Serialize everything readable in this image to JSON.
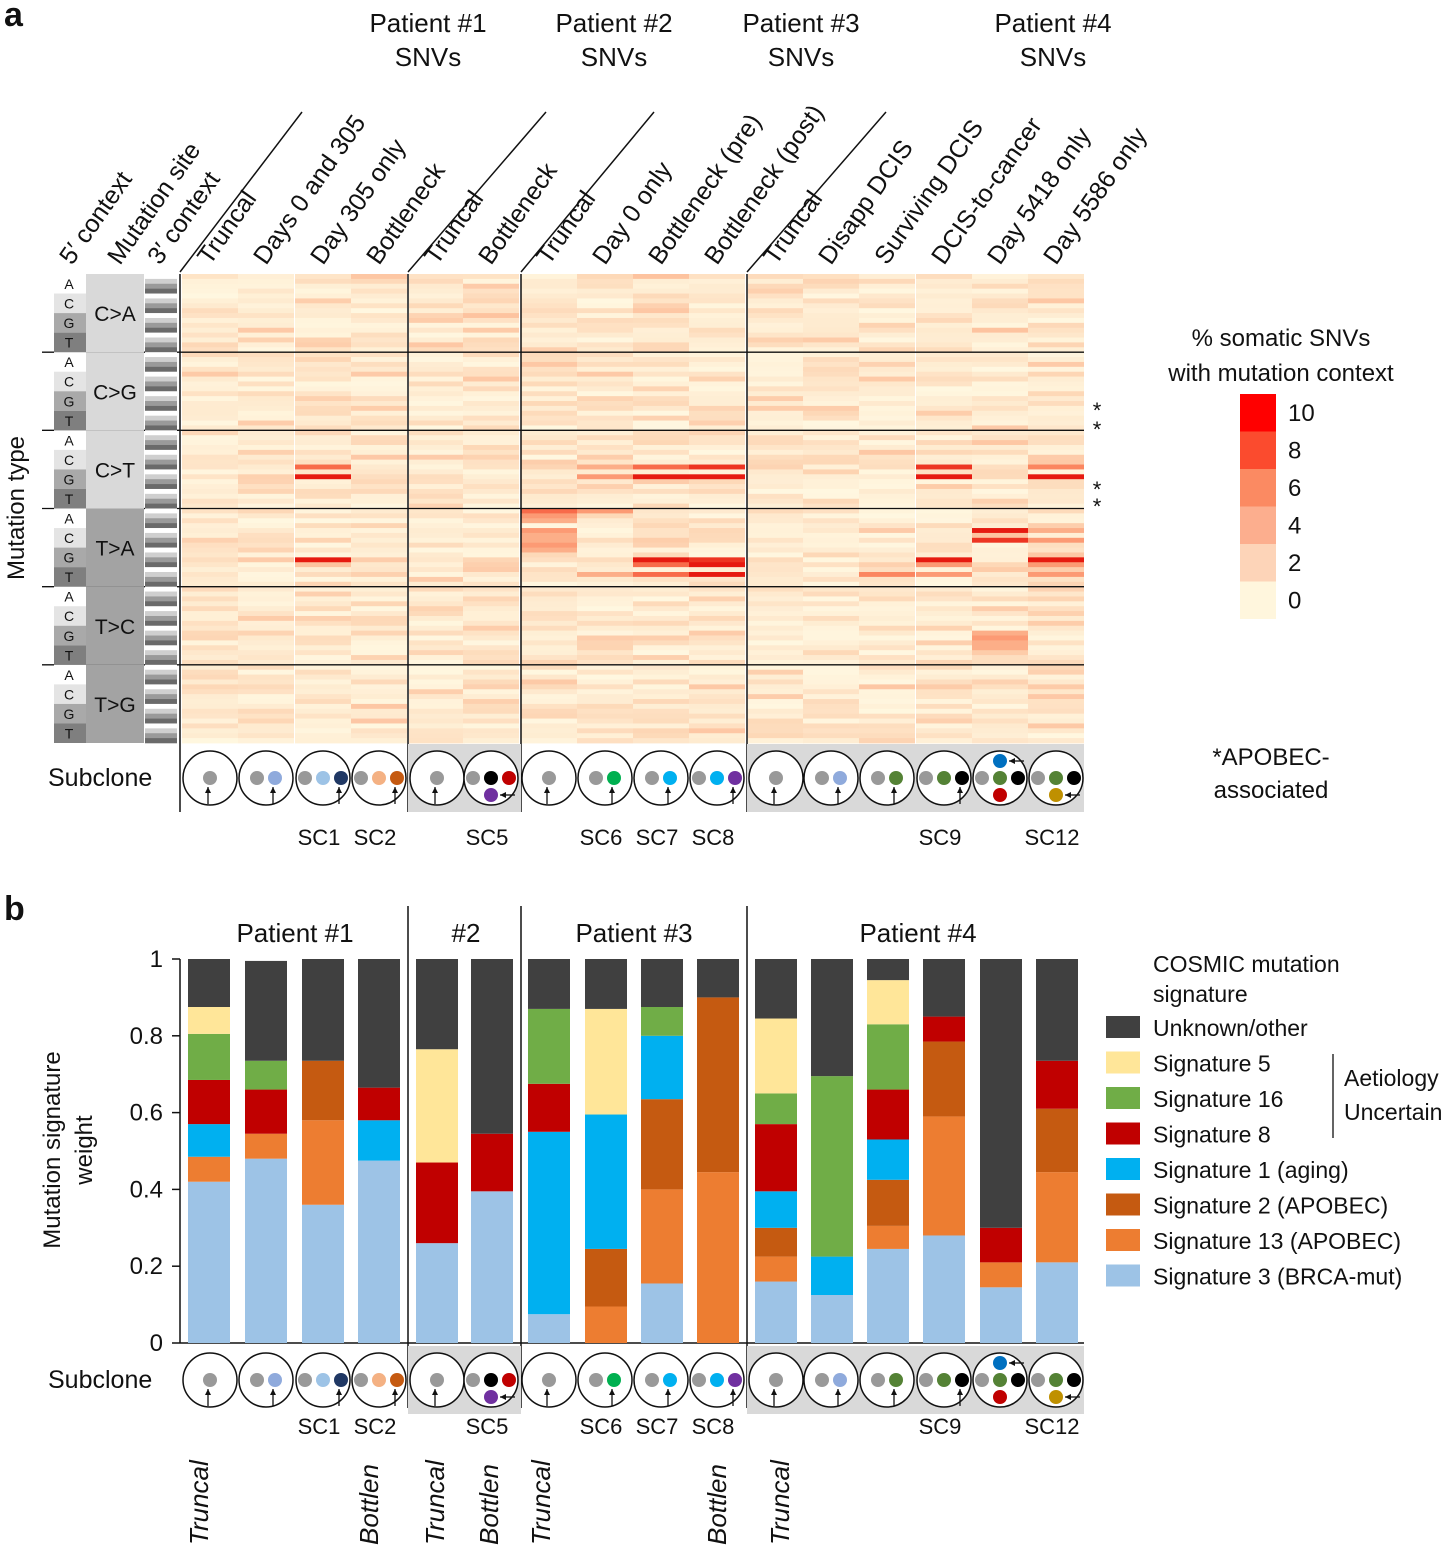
{
  "panels": {
    "a": "a",
    "b": "b"
  },
  "colors": {
    "heat_scale": [
      "#fff7e0",
      "#fdd7b6",
      "#fcae88",
      "#fb8660",
      "#f45033",
      "#e61a10"
    ],
    "legend_boxes": [
      "#ff0000",
      "#fb4b2e",
      "#fb8a62",
      "#fcae8e",
      "#fdd4b8",
      "#fff6dd"
    ],
    "subclone_panel": "#d9d9d9",
    "grey_group": "#a3a3a3",
    "light_group": "#d9d9d9",
    "circle_fill": "#ffffff"
  },
  "heatmap": {
    "patient_headers": [
      {
        "line1": "Patient #1",
        "line2": "SNVs"
      },
      {
        "line1": "Patient #2",
        "line2": "SNVs"
      },
      {
        "line1": "Patient #3",
        "line2": "SNVs"
      },
      {
        "line1": "Patient #4",
        "line2": "SNVs"
      }
    ],
    "left_headers": [
      "5′ context",
      "Mutation site",
      "3′ context"
    ],
    "columns": [
      "Truncal",
      "Days 0 and 305",
      "Day 305 only",
      "Bottleneck",
      "Truncal",
      "Bottleneck",
      "Truncal",
      "Day 0 only",
      "Bottleneck (pre)",
      "Bottleneck (post)",
      "Truncal",
      "Disapp DCIS",
      "Surviving DCIS",
      "DCIS-to-cancer",
      "Day 5418 only",
      "Day 5586 only"
    ],
    "mutation_types": [
      "C>A",
      "C>G",
      "C>T",
      "T>A",
      "T>C",
      "T>G"
    ],
    "bases": [
      "A",
      "C",
      "G",
      "T"
    ],
    "y_axis_label": "Mutation type",
    "asterisk": "*",
    "legend_title": [
      "% somatic SNVs",
      "with mutation context"
    ],
    "legend_values": [
      "10",
      "8",
      "6",
      "4",
      "2",
      "0"
    ],
    "apobec_note": [
      "*APOBEC-",
      "associated"
    ],
    "subclone_label": "Subclone",
    "subclone_names": [
      "",
      "",
      "SC1",
      "SC2",
      "",
      "SC5",
      "",
      "SC6",
      "SC7",
      "SC8",
      "",
      "",
      "",
      "SC9",
      "",
      "SC12"
    ],
    "hot_cells": [
      {
        "row": 39,
        "col": 2,
        "value": 7
      },
      {
        "row": 41,
        "col": 2,
        "value": 10
      },
      {
        "row": 39,
        "col": 8,
        "value": 7
      },
      {
        "row": 41,
        "col": 8,
        "value": 10
      },
      {
        "row": 39,
        "col": 9,
        "value": 9
      },
      {
        "row": 41,
        "col": 9,
        "value": 10
      },
      {
        "row": 39,
        "col": 13,
        "value": 9
      },
      {
        "row": 41,
        "col": 13,
        "value": 10
      },
      {
        "row": 39,
        "col": 15,
        "value": 6
      },
      {
        "row": 41,
        "col": 15,
        "value": 10
      },
      {
        "row": 39,
        "col": 7,
        "value": 4
      },
      {
        "row": 41,
        "col": 7,
        "value": 5
      },
      {
        "row": 58,
        "col": 2,
        "value": 10
      },
      {
        "row": 59,
        "col": 2,
        "value": 3
      },
      {
        "row": 58,
        "col": 8,
        "value": 10
      },
      {
        "row": 59,
        "col": 8,
        "value": 7
      },
      {
        "row": 58,
        "col": 9,
        "value": 9
      },
      {
        "row": 59,
        "col": 9,
        "value": 10
      },
      {
        "row": 58,
        "col": 13,
        "value": 10
      },
      {
        "row": 59,
        "col": 13,
        "value": 5
      },
      {
        "row": 58,
        "col": 15,
        "value": 10
      },
      {
        "row": 59,
        "col": 15,
        "value": 5
      },
      {
        "row": 61,
        "col": 9,
        "value": 10
      },
      {
        "row": 61,
        "col": 8,
        "value": 7
      },
      {
        "row": 61,
        "col": 7,
        "value": 4
      },
      {
        "row": 61,
        "col": 12,
        "value": 6
      },
      {
        "row": 61,
        "col": 13,
        "value": 5
      },
      {
        "row": 61,
        "col": 15,
        "value": 5
      },
      {
        "row": 48,
        "col": 6,
        "value": 7
      },
      {
        "row": 48,
        "col": 7,
        "value": 5
      },
      {
        "row": 49,
        "col": 6,
        "value": 5
      },
      {
        "row": 50,
        "col": 6,
        "value": 4
      },
      {
        "row": 52,
        "col": 6,
        "value": 5
      },
      {
        "row": 53,
        "col": 6,
        "value": 4
      },
      {
        "row": 54,
        "col": 6,
        "value": 4
      },
      {
        "row": 55,
        "col": 6,
        "value": 5
      },
      {
        "row": 56,
        "col": 6,
        "value": 4
      },
      {
        "row": 52,
        "col": 14,
        "value": 10
      },
      {
        "row": 53,
        "col": 14,
        "value": 3
      },
      {
        "row": 54,
        "col": 14,
        "value": 9
      },
      {
        "row": 52,
        "col": 15,
        "value": 4
      },
      {
        "row": 54,
        "col": 15,
        "value": 5
      },
      {
        "row": 73,
        "col": 14,
        "value": 4
      },
      {
        "row": 74,
        "col": 14,
        "value": 5
      },
      {
        "row": 75,
        "col": 14,
        "value": 4
      },
      {
        "row": 76,
        "col": 14,
        "value": 4
      },
      {
        "row": 100,
        "col": 11,
        "value": 4
      },
      {
        "row": 101,
        "col": 11,
        "value": 3
      },
      {
        "row": 103,
        "col": 11,
        "value": 3
      },
      {
        "row": 105,
        "col": 10,
        "value": 3
      },
      {
        "row": 106,
        "col": 11,
        "value": 3
      },
      {
        "row": 127,
        "col": 10,
        "value": 4
      },
      {
        "row": 138,
        "col": 1,
        "value": 3
      },
      {
        "row": 140,
        "col": 1,
        "value": 3
      },
      {
        "row": 140,
        "col": 2,
        "value": 3
      },
      {
        "row": 8,
        "col": 5,
        "value": 3
      },
      {
        "row": 11,
        "col": 14,
        "value": 3
      },
      {
        "row": 0,
        "col": 8,
        "value": 3
      }
    ]
  },
  "signature_chart": {
    "patient_headers": [
      "Patient #1",
      "#2",
      "Patient #3",
      "Patient #4"
    ],
    "subclone_label": "Subclone",
    "subclone_names": [
      "",
      "",
      "SC1",
      "SC2",
      "",
      "SC5",
      "",
      "SC6",
      "SC7",
      "SC8",
      "",
      "",
      "",
      "SC9",
      "",
      "SC12"
    ],
    "bottom_labels": [
      "Truncal",
      "Bottlen",
      "Truncal",
      "Bottlen",
      "Truncal",
      "Bottlen",
      "Truncal"
    ],
    "legend_title": [
      "COSMIC mutation",
      "signature"
    ],
    "aetiology_label": [
      "Aetiology",
      "Uncertain"
    ]
  },
  "chart_data": {
    "type": "bar",
    "stacked": true,
    "ylabel": "Mutation signature weight",
    "ylim": [
      0,
      1
    ],
    "yticks": [
      "0",
      "0.2",
      "0.4",
      "0.6",
      "0.8",
      "1"
    ],
    "bars_per_group": [
      4,
      2,
      4,
      6
    ],
    "series": [
      {
        "name": "Signature 3 (BRCA-mut)",
        "color": "#9dc3e6",
        "values": [
          0.42,
          0.48,
          0.36,
          0.475,
          0.26,
          0.395,
          0.075,
          0.0,
          0.155,
          0.0,
          0.16,
          0.125,
          0.245,
          0.28,
          0.145,
          0.21
        ]
      },
      {
        "name": "Signature 13 (APOBEC)",
        "color": "#ed7d31",
        "values": [
          0.065,
          0.065,
          0.22,
          0.0,
          0.0,
          0.0,
          0.0,
          0.095,
          0.245,
          0.445,
          0.065,
          0.0,
          0.06,
          0.31,
          0.065,
          0.235
        ]
      },
      {
        "name": "Signature 2 (APOBEC)",
        "color": "#c55a11",
        "values": [
          0.0,
          0.0,
          0.155,
          0.0,
          0.0,
          0.0,
          0.0,
          0.15,
          0.235,
          0.455,
          0.075,
          0.0,
          0.12,
          0.195,
          0.0,
          0.165
        ]
      },
      {
        "name": "Signature 1 (aging)",
        "color": "#00b0f0",
        "values": [
          0.085,
          0.0,
          0.0,
          0.105,
          0.0,
          0.0,
          0.475,
          0.35,
          0.165,
          0.0,
          0.095,
          0.1,
          0.105,
          0.0,
          0.0,
          0.0
        ]
      },
      {
        "name": "Signature 8",
        "color": "#c00000",
        "values": [
          0.115,
          0.115,
          0.0,
          0.085,
          0.21,
          0.15,
          0.125,
          0.0,
          0.0,
          0.0,
          0.175,
          0.0,
          0.13,
          0.065,
          0.09,
          0.125
        ]
      },
      {
        "name": "Signature 16",
        "color": "#70ad47",
        "values": [
          0.12,
          0.075,
          0.0,
          0.0,
          0.0,
          0.0,
          0.195,
          0.0,
          0.075,
          0.0,
          0.08,
          0.47,
          0.17,
          0.0,
          0.0,
          0.0
        ]
      },
      {
        "name": "Signature 5",
        "color": "#ffe699",
        "values": [
          0.07,
          0.0,
          0.0,
          0.0,
          0.295,
          0.0,
          0.0,
          0.275,
          0.0,
          0.0,
          0.195,
          0.0,
          0.115,
          0.0,
          0.0,
          0.0
        ]
      },
      {
        "name": "Unknown/other",
        "color": "#404040",
        "values": [
          0.125,
          0.26,
          0.265,
          0.335,
          0.235,
          0.455,
          0.13,
          0.13,
          0.125,
          0.1,
          0.155,
          0.305,
          0.055,
          0.15,
          0.7,
          0.265
        ]
      }
    ],
    "legend_order": [
      "Unknown/other",
      "Signature 5",
      "Signature 16",
      "Signature 8",
      "Signature 1 (aging)",
      "Signature 2 (APOBEC)",
      "Signature 13 (APOBEC)",
      "Signature 3 (BRCA-mut)"
    ]
  },
  "subclone_glyphs": [
    {
      "dots": [
        "#999999"
      ]
    },
    {
      "dots": [
        "#999999",
        "#8faadc"
      ]
    },
    {
      "dots": [
        "#999999",
        "#9dc3e6",
        "#203864"
      ]
    },
    {
      "dots": [
        "#999999",
        "#f4b183",
        "#c55a11"
      ]
    },
    {
      "dots": [
        "#999999"
      ]
    },
    {
      "dots": [
        "#999999",
        "#000000",
        "#c00000"
      ],
      "extra_below": "#7030a0"
    },
    {
      "dots": [
        "#999999"
      ]
    },
    {
      "dots": [
        "#999999",
        "#00b050"
      ]
    },
    {
      "dots": [
        "#999999",
        "#00b0f0"
      ]
    },
    {
      "dots": [
        "#999999",
        "#00b0f0",
        "#7030a0"
      ]
    },
    {
      "dots": [
        "#999999"
      ]
    },
    {
      "dots": [
        "#999999",
        "#8faadc"
      ]
    },
    {
      "dots": [
        "#999999",
        "#548235"
      ]
    },
    {
      "dots": [
        "#999999",
        "#548235",
        "#000000"
      ]
    },
    {
      "dots": [
        "#999999",
        "#548235",
        "#000000"
      ],
      "extra_above": "#0070c0",
      "extra_below2": "#c00000"
    },
    {
      "dots": [
        "#999999",
        "#548235",
        "#000000"
      ],
      "extra_below": "#bf9000"
    }
  ]
}
